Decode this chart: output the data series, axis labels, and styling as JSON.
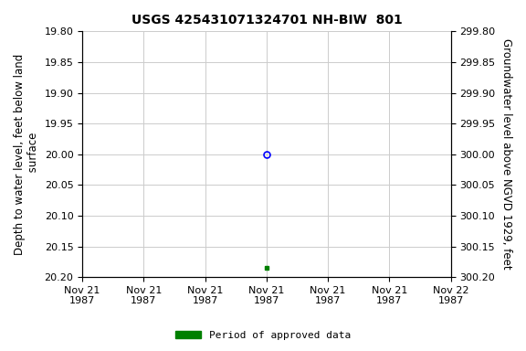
{
  "title": "USGS 425431071324701 NH-BIW  801",
  "ylabel_left": "Depth to water level, feet below land\n surface",
  "ylabel_right": "Groundwater level above NGVD 1929, feet",
  "ylim_left": [
    19.8,
    20.2
  ],
  "ylim_right_top": 300.2,
  "ylim_right_bottom": 299.8,
  "yticks_left": [
    19.8,
    19.85,
    19.9,
    19.95,
    20.0,
    20.05,
    20.1,
    20.15,
    20.2
  ],
  "yticks_right": [
    300.2,
    300.15,
    300.1,
    300.05,
    300.0,
    299.95,
    299.9,
    299.85,
    299.8
  ],
  "dp1_x_hours": 12,
  "dp1_y": 20.0,
  "dp2_x_hours": 12,
  "dp2_y": 20.185,
  "grid_color": "#cccccc",
  "point_color_open": "#0000ff",
  "point_color_filled": "#008000",
  "legend_label": "Period of approved data",
  "legend_color": "#008000",
  "title_fontsize": 10,
  "axis_label_fontsize": 8.5,
  "tick_fontsize": 8,
  "background_color": "#ffffff",
  "total_hours": 24,
  "xtick_hours": [
    0,
    4,
    8,
    12,
    16,
    20,
    24
  ],
  "xtick_labels": [
    "Nov 21\n1987",
    "Nov 21\n1987",
    "Nov 21\n1987",
    "Nov 21\n1987",
    "Nov 21\n1987",
    "Nov 21\n1987",
    "Nov 22\n1987"
  ]
}
